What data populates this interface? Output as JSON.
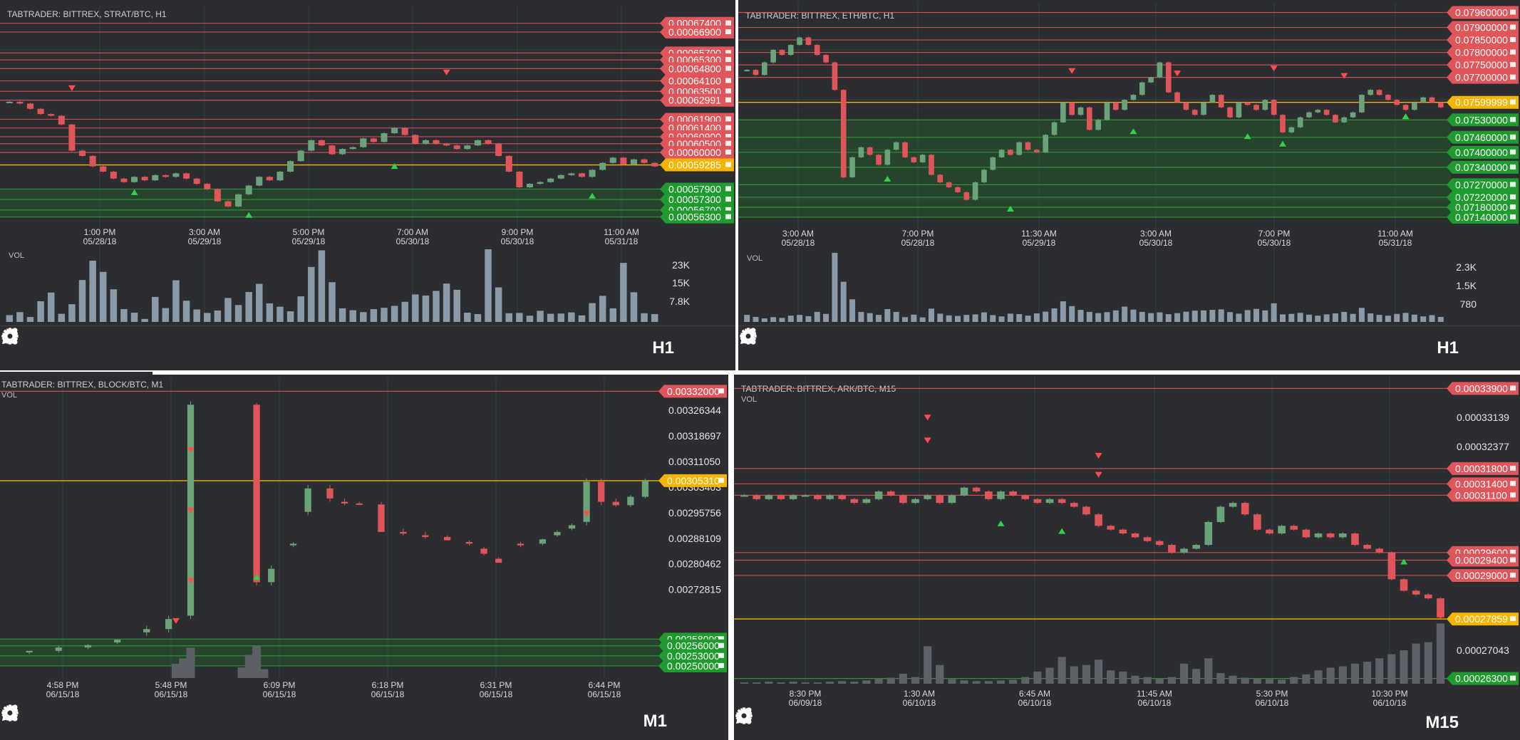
{
  "toolbar_icons": [
    "share-icon",
    "add-alert-icon",
    "indicators-icon",
    "draw-pencil-icon",
    "settings-gear-icon",
    "timeframe-label",
    "collapse-icon"
  ],
  "colors": {
    "background": "#2b2d30",
    "grid": "#3a3d42",
    "bull": "#6aa37a",
    "bear": "#e0555a",
    "sell_line": "#e0555a",
    "buy_line": "#2f9a36",
    "current_price": "#f4b400",
    "sell_marker": "#ff4d4d",
    "buy_marker": "#33d14a",
    "volume": "#8a9aa8",
    "text": "#d8d8d8"
  },
  "panels": [
    {
      "title": "TABTRADER: BITTREX, STRAT/BTC, H1",
      "timeframe": "H1",
      "volume_label": "VOL",
      "volume_ticks": [
        "23K",
        "15K",
        "7.8K"
      ],
      "current_price": "0.00059285",
      "sell_prices": [
        "0.00067400",
        "0.00066900",
        "0.00065700",
        "0.00065300",
        "0.00064800",
        "0.00064100",
        "0.00063500",
        "0.00062991",
        "0.00061900",
        "0.00061400",
        "0.00060900",
        "0.00060500",
        "0.00060000"
      ],
      "buy_prices": [
        "0.00057900",
        "0.00057300",
        "0.00056700",
        "0.00056300"
      ],
      "x_ticks": [
        [
          "1:00 PM",
          "05/28/18"
        ],
        [
          "3:00 AM",
          "05/29/18"
        ],
        [
          "5:00 PM",
          "05/29/18"
        ],
        [
          "7:00 AM",
          "05/30/18"
        ],
        [
          "9:00 PM",
          "05/30/18"
        ],
        [
          "11:00 AM",
          "05/31/18"
        ]
      ],
      "chart_data": {
        "type": "candlestick",
        "y_range": [
          0.00056,
          0.00068
        ],
        "close": [
          0.000629,
          0.000628,
          0.000625,
          0.000622,
          0.000621,
          0.000616,
          0.000601,
          0.000598,
          0.000592,
          0.000589,
          0.000585,
          0.000583,
          0.000586,
          0.000584,
          0.000587,
          0.000586,
          0.000588,
          0.000585,
          0.000582,
          0.000579,
          0.000572,
          0.000569,
          0.000576,
          0.000581,
          0.000586,
          0.000584,
          0.000589,
          0.000595,
          0.000601,
          0.000607,
          0.000604,
          0.000599,
          0.000602,
          0.000603,
          0.000608,
          0.000606,
          0.000611,
          0.000614,
          0.00061,
          0.000605,
          0.000607,
          0.000605,
          0.000604,
          0.000602,
          0.000604,
          0.000607,
          0.000605,
          0.000598,
          0.000589,
          0.00058,
          0.000582,
          0.000583,
          0.000585,
          0.000587,
          0.000588,
          0.000586,
          0.00059,
          0.000594,
          0.000597,
          0.000593,
          0.000596,
          0.000594,
          0.000592
        ],
        "volume": [
          2500,
          3600,
          1800,
          7600,
          10800,
          3000,
          6500,
          15400,
          22500,
          18400,
          12000,
          4700,
          3400,
          1100,
          9200,
          5100,
          15300,
          7800,
          4600,
          3300,
          4200,
          8800,
          6200,
          11000,
          14000,
          6800,
          5600,
          3900,
          9400,
          20200,
          26300,
          14600,
          5000,
          4300,
          3600,
          4700,
          5200,
          5900,
          7400,
          10100,
          9700,
          11400,
          14100,
          11800,
          3400,
          2900,
          26700,
          12700,
          3200,
          3300,
          2300,
          4100,
          3000,
          3100,
          3500,
          2400,
          6900,
          9600,
          5000,
          21700,
          10900,
          3200,
          2900
        ],
        "sell_markers": [
          [
            6,
            0.000636
          ],
          [
            42,
            0.000645
          ]
        ],
        "buy_markers": [
          [
            12,
            0.000578
          ],
          [
            23,
            0.000565
          ],
          [
            37,
            0.000593
          ],
          [
            56,
            0.000576
          ]
        ]
      }
    },
    {
      "title": "TABTRADER: BITTREX, ETH/BTC, H1",
      "timeframe": "H1",
      "volume_label": "VOL",
      "volume_ticks": [
        "2.3K",
        "1.5K",
        "780"
      ],
      "current_price": "0.07599999",
      "sell_prices": [
        "0.07960000",
        "0.07900000",
        "0.07850000",
        "0.07800000",
        "0.07750000",
        "0.07700000"
      ],
      "buy_prices": [
        "0.07530000",
        "0.07460000",
        "0.07400000",
        "0.07340000",
        "0.07270000",
        "0.07220000",
        "0.07180000",
        "0.07140000"
      ],
      "x_ticks": [
        [
          "3:00 AM",
          "05/28/18"
        ],
        [
          "7:00 PM",
          "05/28/18"
        ],
        [
          "11:30 AM",
          "05/29/18"
        ],
        [
          "3:00 AM",
          "05/30/18"
        ],
        [
          "7:00 PM",
          "05/30/18"
        ],
        [
          "11:00 AM",
          "05/31/18"
        ]
      ],
      "chart_data": {
        "type": "candlestick",
        "y_range": [
          0.0712,
          0.0797
        ],
        "close": [
          0.0773,
          0.0771,
          0.0776,
          0.0781,
          0.0779,
          0.0783,
          0.0786,
          0.0783,
          0.0779,
          0.0776,
          0.0765,
          0.073,
          0.0738,
          0.0742,
          0.0739,
          0.0735,
          0.0741,
          0.0744,
          0.0738,
          0.0736,
          0.0739,
          0.0731,
          0.0728,
          0.0726,
          0.0724,
          0.0721,
          0.0728,
          0.0733,
          0.0738,
          0.0741,
          0.0739,
          0.0744,
          0.0741,
          0.074,
          0.0747,
          0.0752,
          0.076,
          0.0755,
          0.0758,
          0.0749,
          0.0753,
          0.076,
          0.0757,
          0.0761,
          0.0763,
          0.0768,
          0.077,
          0.0776,
          0.0764,
          0.076,
          0.0757,
          0.0755,
          0.076,
          0.0763,
          0.0758,
          0.0754,
          0.076,
          0.0759,
          0.0757,
          0.0761,
          0.0755,
          0.0748,
          0.075,
          0.0754,
          0.0756,
          0.0757,
          0.0755,
          0.0752,
          0.0754,
          0.0756,
          0.0763,
          0.0765,
          0.0763,
          0.0761,
          0.0759,
          0.0757,
          0.076,
          0.0762,
          0.076,
          0.0758
        ],
        "volume": [
          280,
          200,
          140,
          190,
          160,
          250,
          280,
          230,
          400,
          320,
          2750,
          1600,
          900,
          400,
          350,
          280,
          510,
          400,
          190,
          290,
          180,
          530,
          330,
          260,
          240,
          280,
          300,
          380,
          270,
          220,
          330,
          310,
          250,
          340,
          410,
          540,
          820,
          630,
          480,
          400,
          350,
          390,
          460,
          610,
          490,
          400,
          350,
          380,
          310,
          350,
          410,
          450,
          460,
          480,
          500,
          390,
          330,
          470,
          520,
          460,
          740,
          300,
          320,
          360,
          290,
          250,
          300,
          340,
          400,
          320,
          560,
          340,
          280,
          250,
          320,
          360,
          290,
          220,
          270,
          200
        ],
        "sell_markers": [
          [
            37,
            0.0772
          ],
          [
            49,
            0.0771
          ],
          [
            60,
            0.0773
          ],
          [
            68,
            0.077
          ]
        ],
        "buy_markers": [
          [
            16,
            0.073
          ],
          [
            30,
            0.0718
          ],
          [
            44,
            0.0749
          ],
          [
            57,
            0.0747
          ],
          [
            61,
            0.0744
          ],
          [
            75,
            0.0755
          ]
        ]
      }
    },
    {
      "title": "TABTRADER: BITTREX, BLOCK/BTC, M1",
      "timeframe": "M1",
      "volume_label": "VOL",
      "current_price": "0.00305310",
      "sell_prices": [
        "0.00332000"
      ],
      "buy_prices": [
        "0.00258000",
        "0.00256000",
        "0.00253000",
        "0.00250000"
      ],
      "y_ticks": [
        "0.00326344",
        "0.00318697",
        "0.00311050",
        "0.00303403",
        "0.00295756",
        "0.00288109",
        "0.00280462",
        "0.00272815"
      ],
      "x_ticks": [
        [
          "4:58 PM",
          "06/15/18"
        ],
        [
          "5:48 PM",
          "06/15/18"
        ],
        [
          "6:09 PM",
          "06/15/18"
        ],
        [
          "6:18 PM",
          "06/15/18"
        ],
        [
          "6:31 PM",
          "06/15/18"
        ],
        [
          "6:44 PM",
          "06/15/18"
        ]
      ],
      "chart_data": {
        "type": "candlestick",
        "y_range": [
          0.002485,
          0.00334
        ],
        "candles": [
          [
            4,
            0.00254,
            0.002545,
            0.002535,
            0.002545
          ],
          [
            8,
            0.002545,
            0.00256,
            0.00254,
            0.002555
          ],
          [
            12,
            0.002555,
            0.002565,
            0.00255,
            0.002562
          ],
          [
            16,
            0.00257,
            0.00258,
            0.002565,
            0.002578
          ],
          [
            20,
            0.0026,
            0.00262,
            0.00259,
            0.00261
          ],
          [
            23,
            0.00261,
            0.00265,
            0.0026,
            0.00264
          ],
          [
            26,
            0.00265,
            0.00329,
            0.00264,
            0.00328
          ],
          [
            35,
            0.00328,
            0.003285,
            0.00274,
            0.00275
          ],
          [
            37,
            0.00275,
            0.0028,
            0.00274,
            0.00279
          ],
          [
            40,
            0.00286,
            0.00287,
            0.002855,
            0.002865
          ],
          [
            42,
            0.00296,
            0.00304,
            0.00295,
            0.00303
          ],
          [
            45,
            0.00303,
            0.00304,
            0.00299,
            0.003
          ],
          [
            47,
            0.00299,
            0.003,
            0.00298,
            0.002985
          ],
          [
            49,
            0.002985,
            0.00299,
            0.00298,
            0.002982
          ],
          [
            52,
            0.002982,
            0.00299,
            0.0029,
            0.0029
          ],
          [
            55,
            0.0029,
            0.00291,
            0.00289,
            0.002895
          ],
          [
            58,
            0.00289,
            0.0029,
            0.00288,
            0.002885
          ],
          [
            61,
            0.002885,
            0.00289,
            0.00288,
            0.002875
          ],
          [
            64,
            0.00287,
            0.002875,
            0.00286,
            0.002865
          ],
          [
            66,
            0.00285,
            0.002855,
            0.00283,
            0.002835
          ],
          [
            68,
            0.00282,
            0.002825,
            0.00281,
            0.002808
          ],
          [
            71,
            0.002865,
            0.00287,
            0.002855,
            0.00286
          ],
          [
            74,
            0.002865,
            0.00288,
            0.00286,
            0.002878
          ],
          [
            76,
            0.00289,
            0.002905,
            0.002885,
            0.0029
          ],
          [
            78,
            0.00291,
            0.002925,
            0.002905,
            0.00292
          ],
          [
            80,
            0.00293,
            0.00306,
            0.00292,
            0.00305
          ],
          [
            82,
            0.00305,
            0.00306,
            0.00298,
            0.00299
          ],
          [
            84,
            0.00299,
            0.003,
            0.002975,
            0.00298
          ],
          [
            86,
            0.00298,
            0.00301,
            0.002975,
            0.003005
          ],
          [
            88,
            0.003005,
            0.00306,
            0.003,
            0.003053
          ]
        ],
        "volume": [
          [
            24,
            0.4
          ],
          [
            25,
            0.55
          ],
          [
            26,
            0.85
          ],
          [
            33,
            0.3
          ],
          [
            34,
            0.65
          ],
          [
            35,
            0.9
          ],
          [
            36,
            0.25
          ]
        ],
        "sell_markers": [
          [
            24,
            0.00263
          ],
          [
            26,
            0.00314
          ],
          [
            26,
            0.00296
          ],
          [
            26,
            0.00275
          ],
          [
            80,
            0.00295
          ]
        ],
        "buy_markers": [
          [
            35,
            0.00277
          ]
        ]
      }
    },
    {
      "title": "TABTRADER: BITTREX, ARK/BTC, M15",
      "timeframe": "M15",
      "volume_label": "VOL",
      "current_price": "0.00027859",
      "sell_prices": [
        "0.00033900",
        "0.00031800",
        "0.00031400",
        "0.00031100",
        "0.00029600",
        "0.00029400",
        "0.00029000"
      ],
      "buy_prices": [
        "0.00026300"
      ],
      "y_ticks": [
        "0.00033139",
        "0.00032377",
        "0.00027043"
      ],
      "x_ticks": [
        [
          "8:30 PM",
          "06/09/18"
        ],
        [
          "1:30 AM",
          "06/10/18"
        ],
        [
          "6:45 AM",
          "06/10/18"
        ],
        [
          "11:45 AM",
          "06/10/18"
        ],
        [
          "5:30 PM",
          "06/10/18"
        ],
        [
          "10:30 PM",
          "06/10/18"
        ]
      ],
      "chart_data": {
        "type": "candlestick",
        "y_range": [
          0.000262,
          0.00034
        ],
        "close": [
          0.000311,
          0.00031,
          0.000311,
          0.00031,
          0.000311,
          0.000311,
          0.00031,
          0.000311,
          0.00031,
          0.000309,
          0.00031,
          0.000312,
          0.000311,
          0.000309,
          0.00031,
          0.000311,
          0.000309,
          0.000311,
          0.000313,
          0.000312,
          0.00031,
          0.000312,
          0.000311,
          0.00031,
          0.000309,
          0.00031,
          0.000309,
          0.000308,
          0.000306,
          0.000303,
          0.000302,
          0.000301,
          0.0003,
          0.000299,
          0.000298,
          0.000296,
          0.000297,
          0.000298,
          0.000304,
          0.000308,
          0.000309,
          0.000306,
          0.000302,
          0.000301,
          0.000303,
          0.000302,
          0.0003,
          0.000301,
          0.0003,
          0.000301,
          0.000298,
          0.000297,
          0.000296,
          0.000289,
          0.000286,
          0.000285,
          0.000284,
          0.000279
        ],
        "volume": [
          0.02,
          0.02,
          0.03,
          0.02,
          0.03,
          0.02,
          0.02,
          0.03,
          0.04,
          0.03,
          0.05,
          0.08,
          0.09,
          0.15,
          0.1,
          0.56,
          0.28,
          0.07,
          0.05,
          0.04,
          0.04,
          0.05,
          0.06,
          0.1,
          0.18,
          0.24,
          0.4,
          0.26,
          0.28,
          0.36,
          0.2,
          0.18,
          0.12,
          0.1,
          0.08,
          0.1,
          0.3,
          0.22,
          0.38,
          0.16,
          0.12,
          0.09,
          0.08,
          0.07,
          0.06,
          0.1,
          0.14,
          0.2,
          0.24,
          0.26,
          0.3,
          0.33,
          0.38,
          0.44,
          0.5,
          0.6,
          0.62,
          0.9
        ],
        "sell_markers": [
          [
            15,
            0.000325
          ],
          [
            15,
            0.000331
          ],
          [
            29,
            0.000321
          ],
          [
            29,
            0.000316
          ],
          [
            57,
            0.000279
          ]
        ],
        "buy_markers": [
          [
            21,
            0.000304
          ],
          [
            26,
            0.000302
          ],
          [
            54,
            0.000294
          ],
          [
            57,
            0.00027
          ]
        ]
      }
    }
  ]
}
